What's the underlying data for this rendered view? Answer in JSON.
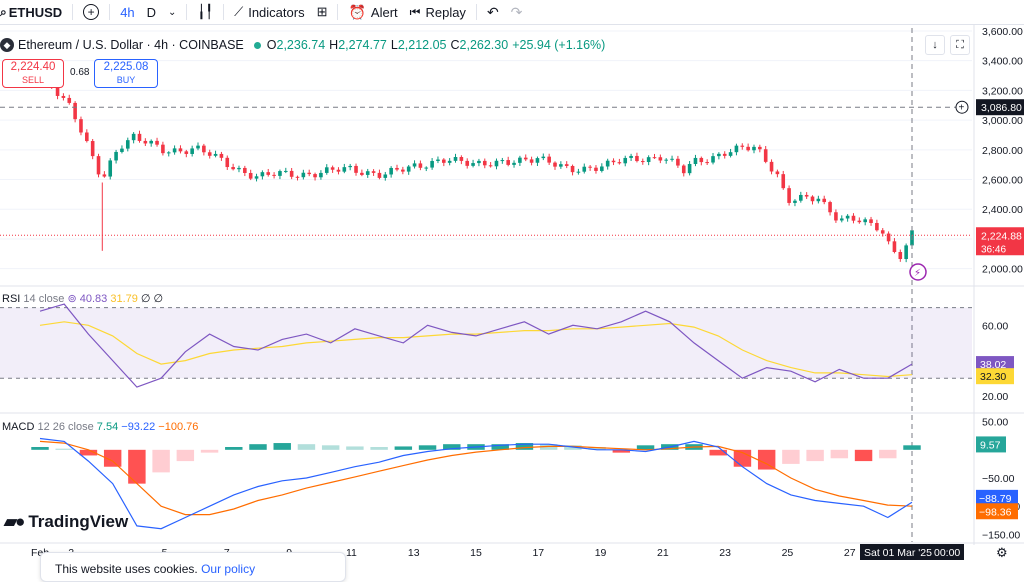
{
  "toolbar": {
    "symbol": "ETHUSD",
    "interval_active": "4h",
    "interval_day": "D",
    "indicators_label": "Indicators",
    "alert_label": "Alert",
    "replay_label": "Replay",
    "icons": [
      "add-symbol-icon",
      "chevron-down-icon",
      "candles-icon",
      "indicators-icon",
      "layouts-icon",
      "alert-icon",
      "replay-icon",
      "undo-icon",
      "redo-icon"
    ]
  },
  "legend": {
    "title": "Ethereum / U.S. Dollar · 4h · COINBASE",
    "open_key": "O",
    "open": "2,236.74",
    "high_key": "H",
    "high": "2,274.77",
    "low_key": "L",
    "low": "2,212.05",
    "close_key": "C",
    "close": "2,262.30",
    "change": "+25.94 (+1.16%)"
  },
  "trade": {
    "sell_price": "2,224.40",
    "sell_label": "SELL",
    "buy_price": "2,225.08",
    "buy_label": "BUY",
    "spread": "0.68"
  },
  "rsi_legend": {
    "name": "RSI",
    "params": "14 close",
    "rsi": "40.83",
    "ma": "31.79",
    "extra": "∅ ∅"
  },
  "macd_legend": {
    "name": "MACD",
    "params": "12 26 close",
    "hist": "7.54",
    "macd": "−93.22",
    "signal": "−100.76"
  },
  "branding": {
    "logo_text": "TradingView"
  },
  "cookie": {
    "text": "This website uses cookies.",
    "link": "Our policy"
  },
  "colors": {
    "up": "#089981",
    "down": "#f23645",
    "rsi_line": "#7e57c2",
    "rsi_ma": "#fdd835",
    "macd": "#2962ff",
    "signal": "#ff6d00",
    "hist_up_strong": "#26a69a",
    "hist_up_weak": "#b2dfdb",
    "hist_down_strong": "#ff5252",
    "hist_down_weak": "#ffcdd2"
  },
  "chart_data": [
    {
      "type": "candlestick",
      "title": "Ethereum / U.S. Dollar · 4h · COINBASE",
      "yaxis": {
        "ticks": [
          "2,000.00",
          "2,200.00",
          "2,400.00",
          "2,600.00",
          "2,800.00",
          "3,000.00",
          "3,200.00",
          "3,400.00",
          "3,600.00"
        ],
        "range": [
          1890,
          3620
        ]
      },
      "xaxis": {
        "ticks": [
          "Feb",
          "2",
          "5",
          "7",
          "9",
          "11",
          "13",
          "15",
          "17",
          "19",
          "21",
          "23",
          "25",
          "27"
        ],
        "crosshair_label": "Sat 01 Mar '25",
        "crosshair_time": "00:00"
      },
      "price_labels": {
        "current": "2,224.88",
        "countdown": "36:46",
        "crosshair": "3,086.80"
      },
      "series": [
        {
          "name": "price",
          "points": [
            {
              "date": "2025-02-01",
              "value": 3300
            },
            {
              "date": "2025-02-01 12:00",
              "value": 3200
            },
            {
              "date": "2025-02-02",
              "value": 3100
            },
            {
              "date": "2025-02-02 16:00",
              "value": 2750
            },
            {
              "date": "2025-02-03",
              "value": 2580
            },
            {
              "date": "2025-02-03 12:00",
              "value": 2820
            },
            {
              "date": "2025-02-04",
              "value": 2900
            },
            {
              "date": "2025-02-05",
              "value": 2780
            },
            {
              "date": "2025-02-06",
              "value": 2820
            },
            {
              "date": "2025-02-07",
              "value": 2700
            },
            {
              "date": "2025-02-08",
              "value": 2620
            },
            {
              "date": "2025-02-09",
              "value": 2640
            },
            {
              "date": "2025-02-10",
              "value": 2640
            },
            {
              "date": "2025-02-11",
              "value": 2680
            },
            {
              "date": "2025-02-12",
              "value": 2620
            },
            {
              "date": "2025-02-13",
              "value": 2700
            },
            {
              "date": "2025-02-14",
              "value": 2720
            },
            {
              "date": "2025-02-15",
              "value": 2720
            },
            {
              "date": "2025-02-16",
              "value": 2700
            },
            {
              "date": "2025-02-17",
              "value": 2760
            },
            {
              "date": "2025-02-18",
              "value": 2650
            },
            {
              "date": "2025-02-19",
              "value": 2700
            },
            {
              "date": "2025-02-20",
              "value": 2730
            },
            {
              "date": "2025-02-21",
              "value": 2760
            },
            {
              "date": "2025-02-21 16:00",
              "value": 2650
            },
            {
              "date": "2025-02-22",
              "value": 2720
            },
            {
              "date": "2025-02-23",
              "value": 2780
            },
            {
              "date": "2025-02-24",
              "value": 2820
            },
            {
              "date": "2025-02-24 16:00",
              "value": 2640
            },
            {
              "date": "2025-02-25",
              "value": 2450
            },
            {
              "date": "2025-02-26",
              "value": 2480
            },
            {
              "date": "2025-02-26 16:00",
              "value": 2330
            },
            {
              "date": "2025-02-27",
              "value": 2330
            },
            {
              "date": "2025-02-28",
              "value": 2280
            },
            {
              "date": "2025-02-28 08:00",
              "value": 2140
            },
            {
              "date": "2025-02-28 16:00",
              "value": 2080
            },
            {
              "date": "2025-03-01",
              "value": 2225
            }
          ]
        }
      ]
    },
    {
      "type": "line",
      "title": "RSI 14 close",
      "yaxis": {
        "ticks": [
          "20.00",
          "60.00"
        ],
        "range": [
          12,
          80
        ],
        "bands": [
          30,
          70
        ]
      },
      "price_labels": {
        "rsi": "38.02",
        "ma": "32.30"
      },
      "series": [
        {
          "name": "RSI",
          "values": [
            68,
            72,
            55,
            40,
            25,
            30,
            45,
            55,
            48,
            46,
            52,
            55,
            50,
            58,
            54,
            50,
            60,
            56,
            54,
            58,
            62,
            55,
            60,
            58,
            62,
            68,
            62,
            50,
            40,
            30,
            36,
            34,
            28,
            35,
            30,
            30,
            38
          ]
        },
        {
          "name": "RSI MA",
          "values": [
            60,
            62,
            60,
            54,
            44,
            38,
            40,
            44,
            46,
            47,
            48,
            50,
            51,
            52,
            53,
            53,
            54,
            55,
            55,
            56,
            57,
            57,
            58,
            58,
            59,
            60,
            61,
            59,
            54,
            46,
            40,
            36,
            33,
            33,
            32,
            31,
            32
          ]
        }
      ]
    },
    {
      "type": "bar+line",
      "title": "MACD 12 26 close",
      "yaxis": {
        "ticks": [
          "50.00",
          "−50.00",
          "−100.00",
          "−150.00"
        ],
        "range": [
          -160,
          60
        ]
      },
      "price_labels": {
        "hist": "9.57",
        "macd": "−88.79",
        "signal": "−98.36"
      },
      "series": [
        {
          "name": "Histogram",
          "values": [
            5,
            2,
            -10,
            -30,
            -60,
            -40,
            -20,
            -5,
            5,
            10,
            12,
            10,
            8,
            6,
            5,
            6,
            8,
            10,
            10,
            10,
            12,
            10,
            8,
            5,
            -5,
            8,
            10,
            10,
            -10,
            -30,
            -35,
            -25,
            -20,
            -15,
            -20,
            -15,
            8
          ]
        },
        {
          "name": "MACD",
          "values": [
            20,
            15,
            -20,
            -60,
            -135,
            -140,
            -120,
            -100,
            -80,
            -65,
            -55,
            -50,
            -40,
            -30,
            -22,
            -10,
            -3,
            2,
            5,
            8,
            10,
            10,
            5,
            0,
            0,
            -3,
            5,
            15,
            5,
            -30,
            -60,
            -80,
            -90,
            -95,
            -100,
            -120,
            -93
          ]
        },
        {
          "name": "Signal",
          "values": [
            15,
            12,
            0,
            -20,
            -60,
            -100,
            -115,
            -115,
            -105,
            -90,
            -80,
            -68,
            -58,
            -48,
            -38,
            -28,
            -18,
            -10,
            -4,
            0,
            4,
            6,
            6,
            4,
            2,
            0,
            2,
            5,
            6,
            -5,
            -25,
            -50,
            -70,
            -82,
            -90,
            -98,
            -100
          ]
        }
      ]
    }
  ]
}
